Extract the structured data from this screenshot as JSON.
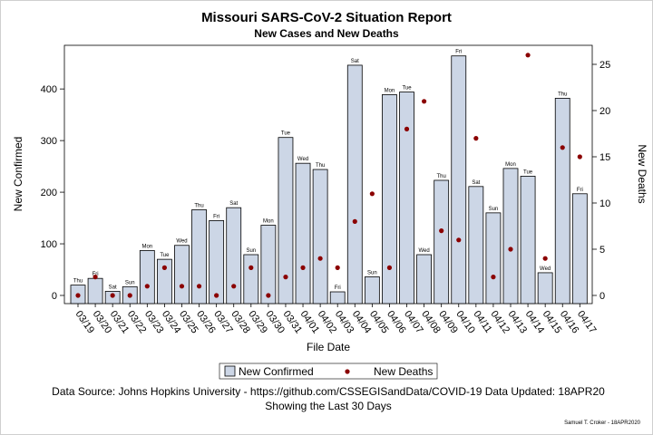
{
  "chart_data": {
    "type": "bar",
    "title": "Missouri SARS-CoV-2 Situation Report",
    "subtitle": "New Cases and New Deaths",
    "xlabel": "File Date",
    "ylabel": "New Confirmed",
    "y2label": "New Deaths",
    "ylim": [
      0,
      480
    ],
    "y2lim": [
      0,
      26.7
    ],
    "yticks": [
      0,
      100,
      200,
      300,
      400
    ],
    "y2ticks": [
      0,
      5,
      10,
      15,
      20,
      25
    ],
    "categories": [
      "03/19",
      "03/20",
      "03/21",
      "03/22",
      "03/23",
      "03/24",
      "03/25",
      "03/26",
      "03/27",
      "03/28",
      "03/29",
      "03/30",
      "03/31",
      "04/01",
      "04/02",
      "04/03",
      "04/04",
      "04/05",
      "04/06",
      "04/07",
      "04/08",
      "04/09",
      "04/10",
      "04/11",
      "04/12",
      "04/13",
      "04/14",
      "04/15",
      "04/16",
      "04/17"
    ],
    "day_labels": [
      "Thu",
      "Fri",
      "Sat",
      "Sun",
      "Mon",
      "Tue",
      "Wed",
      "Thu",
      "Fri",
      "Sat",
      "Sun",
      "Mon",
      "Tue",
      "Wed",
      "Thu",
      "Fri",
      "Sat",
      "Sun",
      "Mon",
      "Tue",
      "Wed",
      "Thu",
      "Fri",
      "Sat",
      "Sun",
      "Mon",
      "Tue",
      "Wed",
      "Thu",
      "Fri"
    ],
    "series": [
      {
        "name": "New Confirmed",
        "type": "bar",
        "axis": "left",
        "color": "#ccd6e6",
        "values": [
          20,
          33,
          8,
          17,
          87,
          70,
          97,
          166,
          145,
          170,
          79,
          136,
          306,
          256,
          244,
          7,
          446,
          36,
          389,
          394,
          79,
          223,
          464,
          211,
          160,
          246,
          231,
          44,
          382,
          197
        ]
      },
      {
        "name": "New Deaths",
        "type": "scatter",
        "axis": "right",
        "color": "#8b0000",
        "values": [
          0,
          2,
          0,
          0,
          1,
          3,
          1,
          1,
          0,
          1,
          3,
          0,
          2,
          3,
          4,
          3,
          8,
          11,
          3,
          18,
          21,
          7,
          6,
          17,
          2,
          5,
          26,
          4,
          16,
          15
        ]
      }
    ],
    "legend": {
      "placement": "bottom",
      "items": [
        "New Confirmed",
        "New Deaths"
      ]
    },
    "footnote_1": "Data Source: Johns Hopkins University - https://github.com/CSSEGISandData/COVID-19 Data Updated: 18APR20",
    "footnote_2": "Showing the Last 30 Days",
    "credit": "Samuel T. Croker - 18APR2020"
  }
}
